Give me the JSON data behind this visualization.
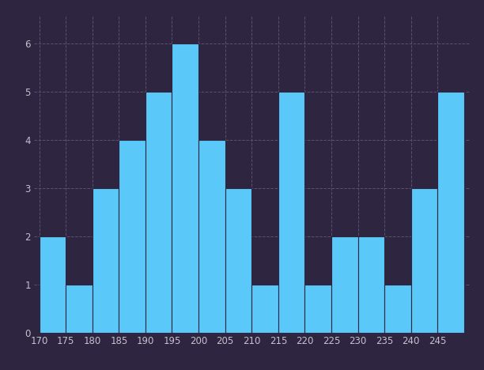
{
  "bin_edges": [
    170,
    175,
    180,
    185,
    190,
    195,
    200,
    205,
    210,
    215,
    220,
    225,
    230,
    235,
    240,
    245,
    250
  ],
  "frequencies": [
    2,
    1,
    3,
    4,
    5,
    6,
    4,
    3,
    1,
    5,
    1,
    2,
    2,
    1,
    3,
    5
  ],
  "bar_color": "#5BC8FA",
  "background_color": "#2E2640",
  "grid_color": "#5A5070",
  "tick_color": "#C8C0D0",
  "ylim": [
    0,
    6.6
  ],
  "yticks": [
    0,
    1,
    2,
    3,
    4,
    5,
    6
  ],
  "xticks": [
    170,
    175,
    180,
    185,
    190,
    195,
    200,
    205,
    210,
    215,
    220,
    225,
    230,
    235,
    240,
    245
  ],
  "bar_edge_color": "#2E2640",
  "bar_linewidth": 0.8,
  "figsize": [
    6.12,
    4.68
  ],
  "dpi": 100
}
